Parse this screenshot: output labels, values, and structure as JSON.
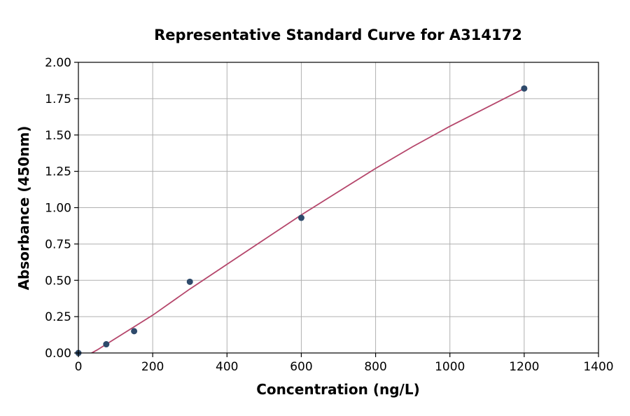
{
  "chart_data": {
    "type": "scatter",
    "title": "Representative Standard Curve for A314172",
    "xlabel": "Concentration (ng/L)",
    "ylabel": "Absorbance (450nm)",
    "xlim": [
      0,
      1400
    ],
    "ylim": [
      0,
      2.0
    ],
    "x_ticks": [
      0,
      200,
      400,
      600,
      800,
      1000,
      1200,
      1400
    ],
    "x_tick_labels": [
      "0",
      "200",
      "400",
      "600",
      "800",
      "1000",
      "1200",
      "1400"
    ],
    "y_ticks": [
      0,
      0.25,
      0.5,
      0.75,
      1.0,
      1.25,
      1.5,
      1.75,
      2.0
    ],
    "y_tick_labels": [
      "0.00",
      "0.25",
      "0.50",
      "0.75",
      "1.00",
      "1.25",
      "1.50",
      "1.75",
      "2.00"
    ],
    "grid": true,
    "series": [
      {
        "kind": "points",
        "x": [
          0,
          75,
          150,
          300,
          600,
          1200
        ],
        "y": [
          0.0,
          0.06,
          0.15,
          0.49,
          0.93,
          1.82
        ],
        "color": "#2e4a6b"
      },
      {
        "kind": "fit-curve",
        "x": [
          0,
          50,
          100,
          150,
          200,
          300,
          400,
          500,
          600,
          700,
          800,
          900,
          1000,
          1100,
          1200
        ],
        "y": [
          -0.05,
          0.02,
          0.1,
          0.18,
          0.26,
          0.44,
          0.61,
          0.78,
          0.95,
          1.11,
          1.27,
          1.42,
          1.56,
          1.69,
          1.82
        ],
        "color": "#b5466b"
      }
    ]
  }
}
